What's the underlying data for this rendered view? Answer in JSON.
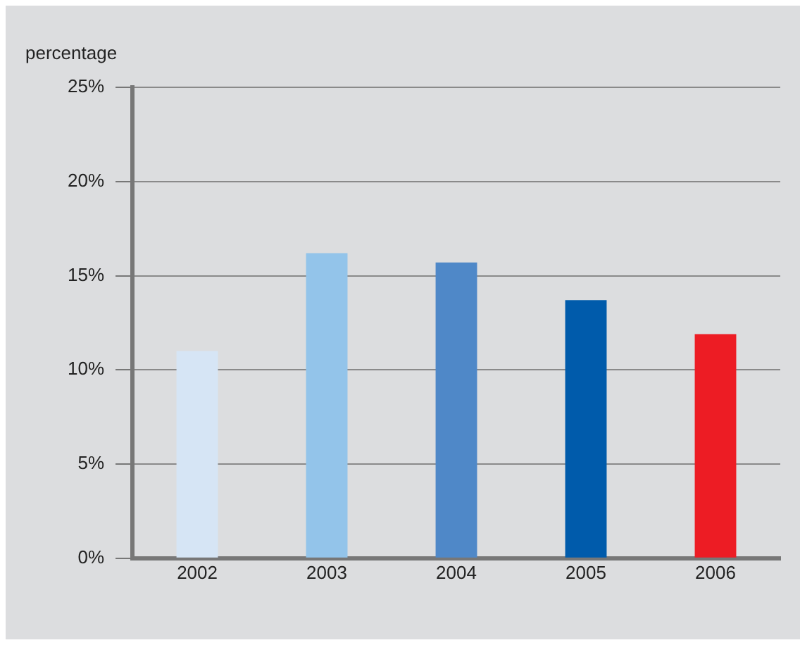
{
  "chart_data": {
    "type": "bar",
    "ylabel": "percentage",
    "categories": [
      "2002",
      "2003",
      "2004",
      "2005",
      "2006"
    ],
    "values": [
      11,
      16.2,
      15.7,
      13.7,
      11.9
    ],
    "colors": [
      "#d6e5f5",
      "#93c4ea",
      "#4f88c8",
      "#005bab",
      "#ed1c24"
    ],
    "ylim": [
      0,
      25
    ],
    "yticks": [
      {
        "value": 0,
        "label": "0%"
      },
      {
        "value": 5,
        "label": "5%"
      },
      {
        "value": 10,
        "label": "10%"
      },
      {
        "value": 15,
        "label": "15%"
      },
      {
        "value": 20,
        "label": "20%"
      },
      {
        "value": 25,
        "label": "25%"
      }
    ],
    "grid": "y",
    "legend": false
  }
}
